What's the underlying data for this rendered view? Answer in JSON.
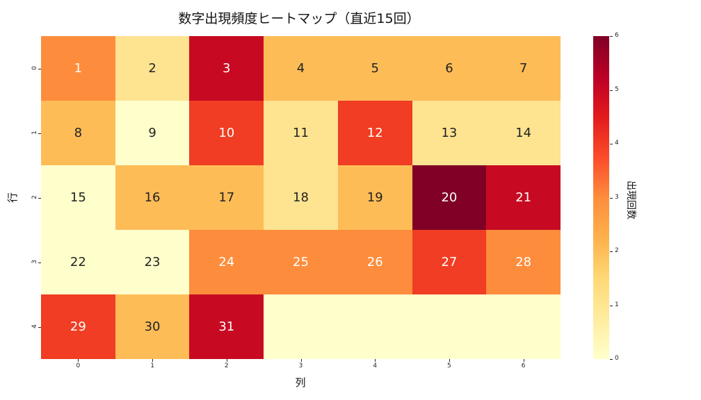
{
  "chart_data": {
    "type": "heatmap",
    "title": "数字出現頻度ヒートマップ（直近15回）",
    "xlabel": "列",
    "ylabel": "行",
    "x_ticks": [
      "0",
      "1",
      "2",
      "3",
      "4",
      "5",
      "6"
    ],
    "y_ticks": [
      "0",
      "1",
      "2",
      "3",
      "4"
    ],
    "colormap": "YlOrRd",
    "colorbar": {
      "label": "出現回数",
      "min": 0,
      "max": 6,
      "ticks": [
        "0",
        "1",
        "2",
        "3",
        "4",
        "5",
        "6"
      ]
    },
    "annotations": [
      [
        "1",
        "2",
        "3",
        "4",
        "5",
        "6",
        "7"
      ],
      [
        "8",
        "9",
        "10",
        "11",
        "12",
        "13",
        "14"
      ],
      [
        "15",
        "16",
        "17",
        "18",
        "19",
        "20",
        "21"
      ],
      [
        "22",
        "23",
        "24",
        "25",
        "26",
        "27",
        "28"
      ],
      [
        "29",
        "30",
        "31",
        "",
        "",
        "",
        ""
      ]
    ],
    "values": [
      [
        3,
        1,
        5,
        2,
        2,
        2,
        2
      ],
      [
        2,
        0,
        4,
        1,
        4,
        1,
        1
      ],
      [
        0,
        2,
        2,
        1,
        2,
        6,
        5
      ],
      [
        0,
        0,
        3,
        3,
        3,
        4,
        3
      ],
      [
        4,
        2,
        5,
        0,
        0,
        0,
        0
      ]
    ]
  }
}
